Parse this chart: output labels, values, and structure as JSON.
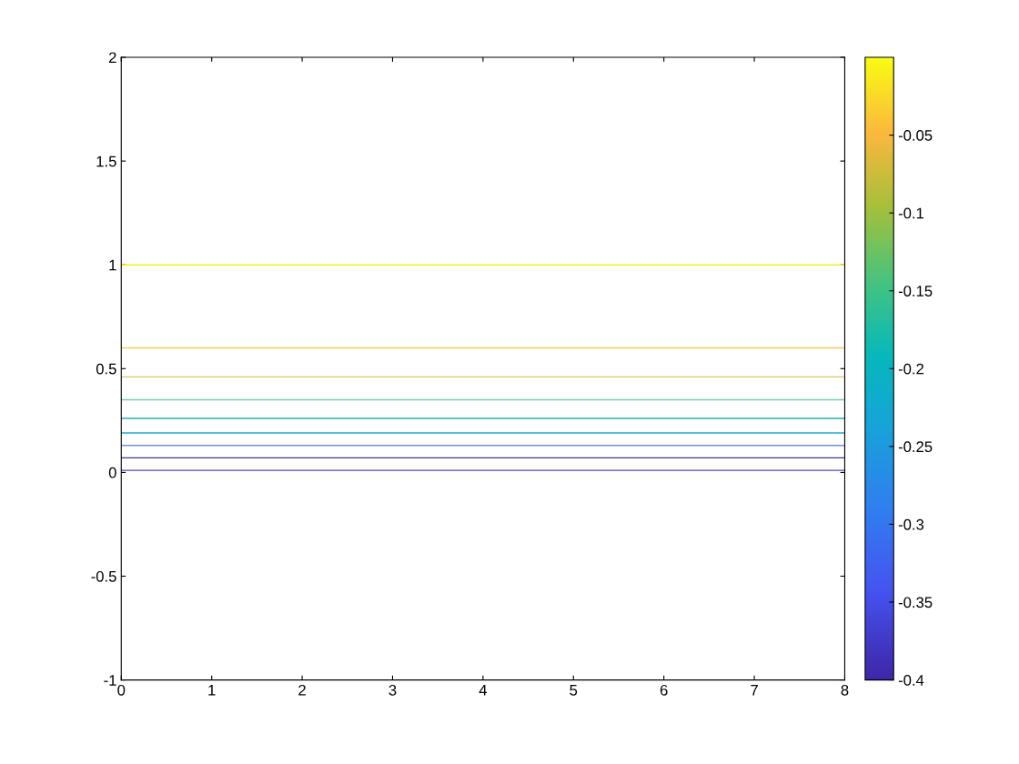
{
  "chart_data": {
    "type": "line",
    "ref_lines": [
      {
        "axis": "y",
        "value": 1.0,
        "color": "#f5f020"
      },
      {
        "axis": "y",
        "value": 0.6,
        "color": "#f5c860"
      },
      {
        "axis": "y",
        "value": 0.46,
        "color": "#d8c860"
      },
      {
        "axis": "y",
        "value": 0.35,
        "color": "#70d0b0"
      },
      {
        "axis": "y",
        "value": 0.26,
        "color": "#20b0b0"
      },
      {
        "axis": "y",
        "value": 0.19,
        "color": "#20a8d0"
      },
      {
        "axis": "y",
        "value": 0.13,
        "color": "#7090e0"
      },
      {
        "axis": "y",
        "value": 0.07,
        "color": "#3a3aa0"
      },
      {
        "axis": "y",
        "value": 0.01,
        "color": "#5050c0"
      }
    ],
    "xlim": [
      0,
      8
    ],
    "xticks": [
      0,
      1,
      2,
      3,
      4,
      5,
      6,
      7,
      8
    ],
    "ylim": [
      -1,
      2
    ],
    "yticks": [
      -1,
      -0.5,
      0,
      0.5,
      1,
      1.5,
      2
    ],
    "clim": [
      -0.4,
      0
    ],
    "cticks": [
      -0.4,
      -0.35,
      -0.3,
      -0.25,
      -0.2,
      -0.15,
      -0.1,
      -0.05
    ],
    "grid": false,
    "line_style": "solid"
  }
}
